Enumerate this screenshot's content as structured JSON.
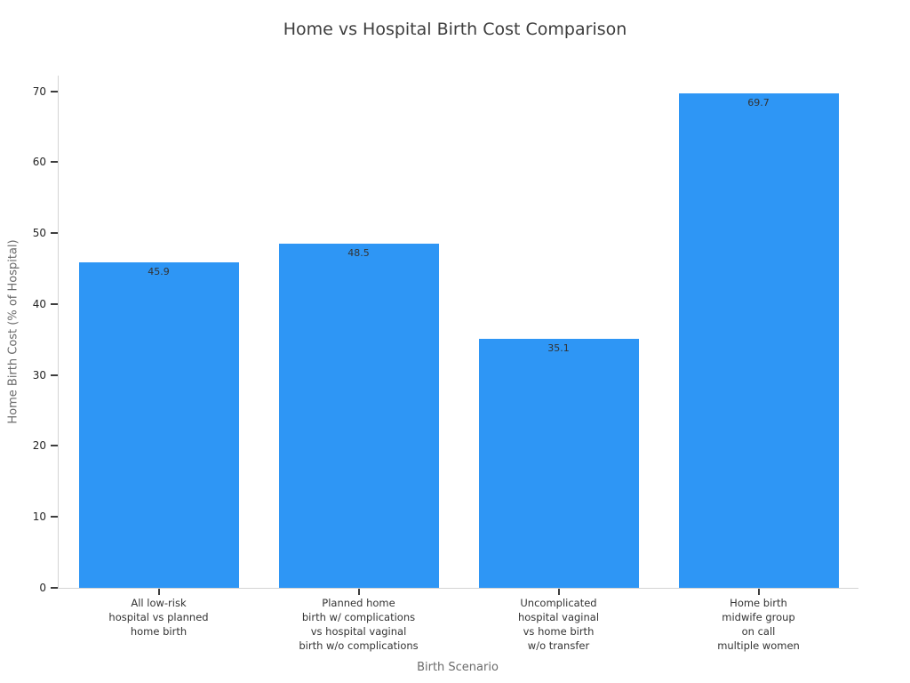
{
  "chart_data": {
    "type": "bar",
    "title": "Home vs Hospital Birth Cost Comparison",
    "xlabel": "Birth Scenario",
    "ylabel": "Home Birth Cost (% of Hospital)",
    "categories": [
      "All low-risk\nhospital vs planned\nhome birth",
      "Planned home\nbirth w/ complications\nvs hospital vaginal\nbirth w/o complications",
      "Uncomplicated\nhospital vaginal\nvs home birth\nw/o transfer",
      "Home birth\nmidwife group\non call\nmultiple women"
    ],
    "values": [
      45.9,
      48.5,
      35.1,
      69.7
    ],
    "value_labels": [
      "45.9",
      "48.5",
      "35.1",
      "69.7"
    ],
    "yticks": [
      0,
      10,
      20,
      30,
      40,
      50,
      60,
      70
    ],
    "ylim": [
      0,
      72.2
    ],
    "grid": false,
    "legend": "none",
    "bar_width_frac": 0.8,
    "colors": {
      "bar": "#2E96F5",
      "axis_line": "#d4d4d4",
      "tick_mark": "#3d3d3d",
      "tick_label": "#262626",
      "axis_title": "#6b6b6b",
      "title": "#3d3d3d",
      "value_label": "#333333",
      "background": "#ffffff"
    }
  }
}
